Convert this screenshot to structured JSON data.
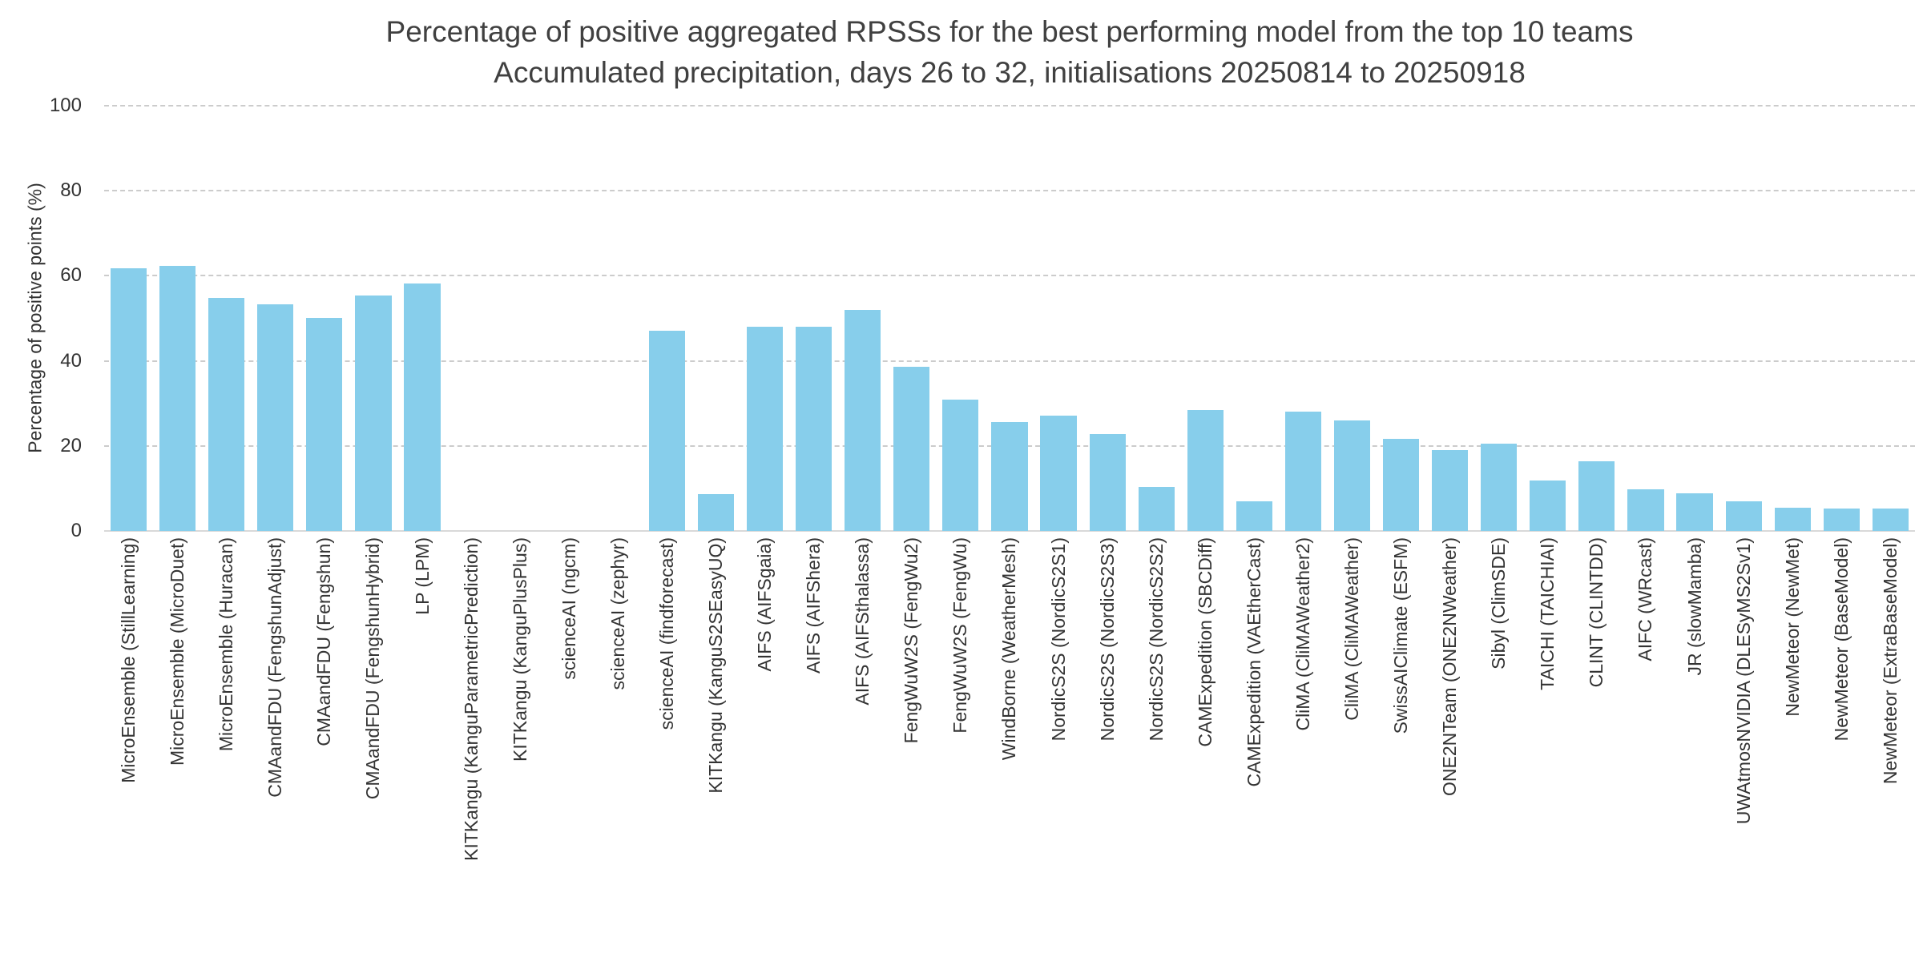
{
  "chart_data": {
    "type": "bar",
    "title": "Percentage of positive aggregated RPSSs for the best performing model from the top 10 teams",
    "subtitle": "Accumulated precipitation, days 26 to 32, initialisations 20250814 to 20250918",
    "ylabel": "Percentage of positive points (%)",
    "xlabel": "",
    "ylim": [
      0,
      100
    ],
    "yticks": [
      0,
      20,
      40,
      60,
      80,
      100
    ],
    "grid": "dashed-horizontal",
    "legend": "none",
    "bar_color": "#87CEEB",
    "categories": [
      "MicroEnsemble (StillLearning)",
      "MicroEnsemble (MicroDuet)",
      "MicroEnsemble (Huracan)",
      "CMAandFDU (FengshunAdjust)",
      "CMAandFDU (Fengshun)",
      "CMAandFDU (FengshunHybrid)",
      "LP (LPM)",
      "KITKangu (KanguParametricPrediction)",
      "KITKangu (KanguPlusPlus)",
      "scienceAI (ngcm)",
      "scienceAI (zephyr)",
      "scienceAI (findforecast)",
      "KITKangu (KanguS2SEasyUQ)",
      "AIFS (AIFSgaia)",
      "AIFS (AIFShera)",
      "AIFS (AIFSthalassa)",
      "FengWuW2S (FengWu2)",
      "FengWuW2S (FengWu)",
      "WindBorne (WeatherMesh)",
      "NordicS2S (NordicS2S1)",
      "NordicS2S (NordicS2S3)",
      "NordicS2S (NordicS2S2)",
      "CAMExpedition (SBCDiff)",
      "CAMExpedition (VAEtherCast)",
      "CliMA (CliMAWeather2)",
      "CliMA (CliMAWeather)",
      "SwissAIClimate (ESFM)",
      "ONE2NTeam (ONE2NWeather)",
      "Sibyl (ClimSDE)",
      "TAICHI (TAICHIAI)",
      "CLINT (CLINTDD)",
      "AIFC (WRcast)",
      "JR (slowMamba)",
      "UWAtmosNVIDIA (DLESyMS2Sv1)",
      "NewMeteor (NewMet)",
      "NewMeteor (BaseModel)",
      "NewMeteor (ExtraBaseModel)"
    ],
    "values": [
      61.8,
      62.3,
      54.8,
      53.3,
      50.1,
      55.3,
      58.2,
      0,
      0,
      0,
      0,
      47.0,
      8.6,
      48.1,
      48.1,
      51.9,
      38.6,
      30.8,
      25.6,
      27.1,
      22.8,
      10.4,
      28.5,
      6.9,
      28.0,
      25.9,
      21.6,
      19.0,
      20.5,
      11.8,
      16.4,
      9.8,
      8.9,
      6.9,
      5.5,
      5.2,
      5.2
    ]
  }
}
